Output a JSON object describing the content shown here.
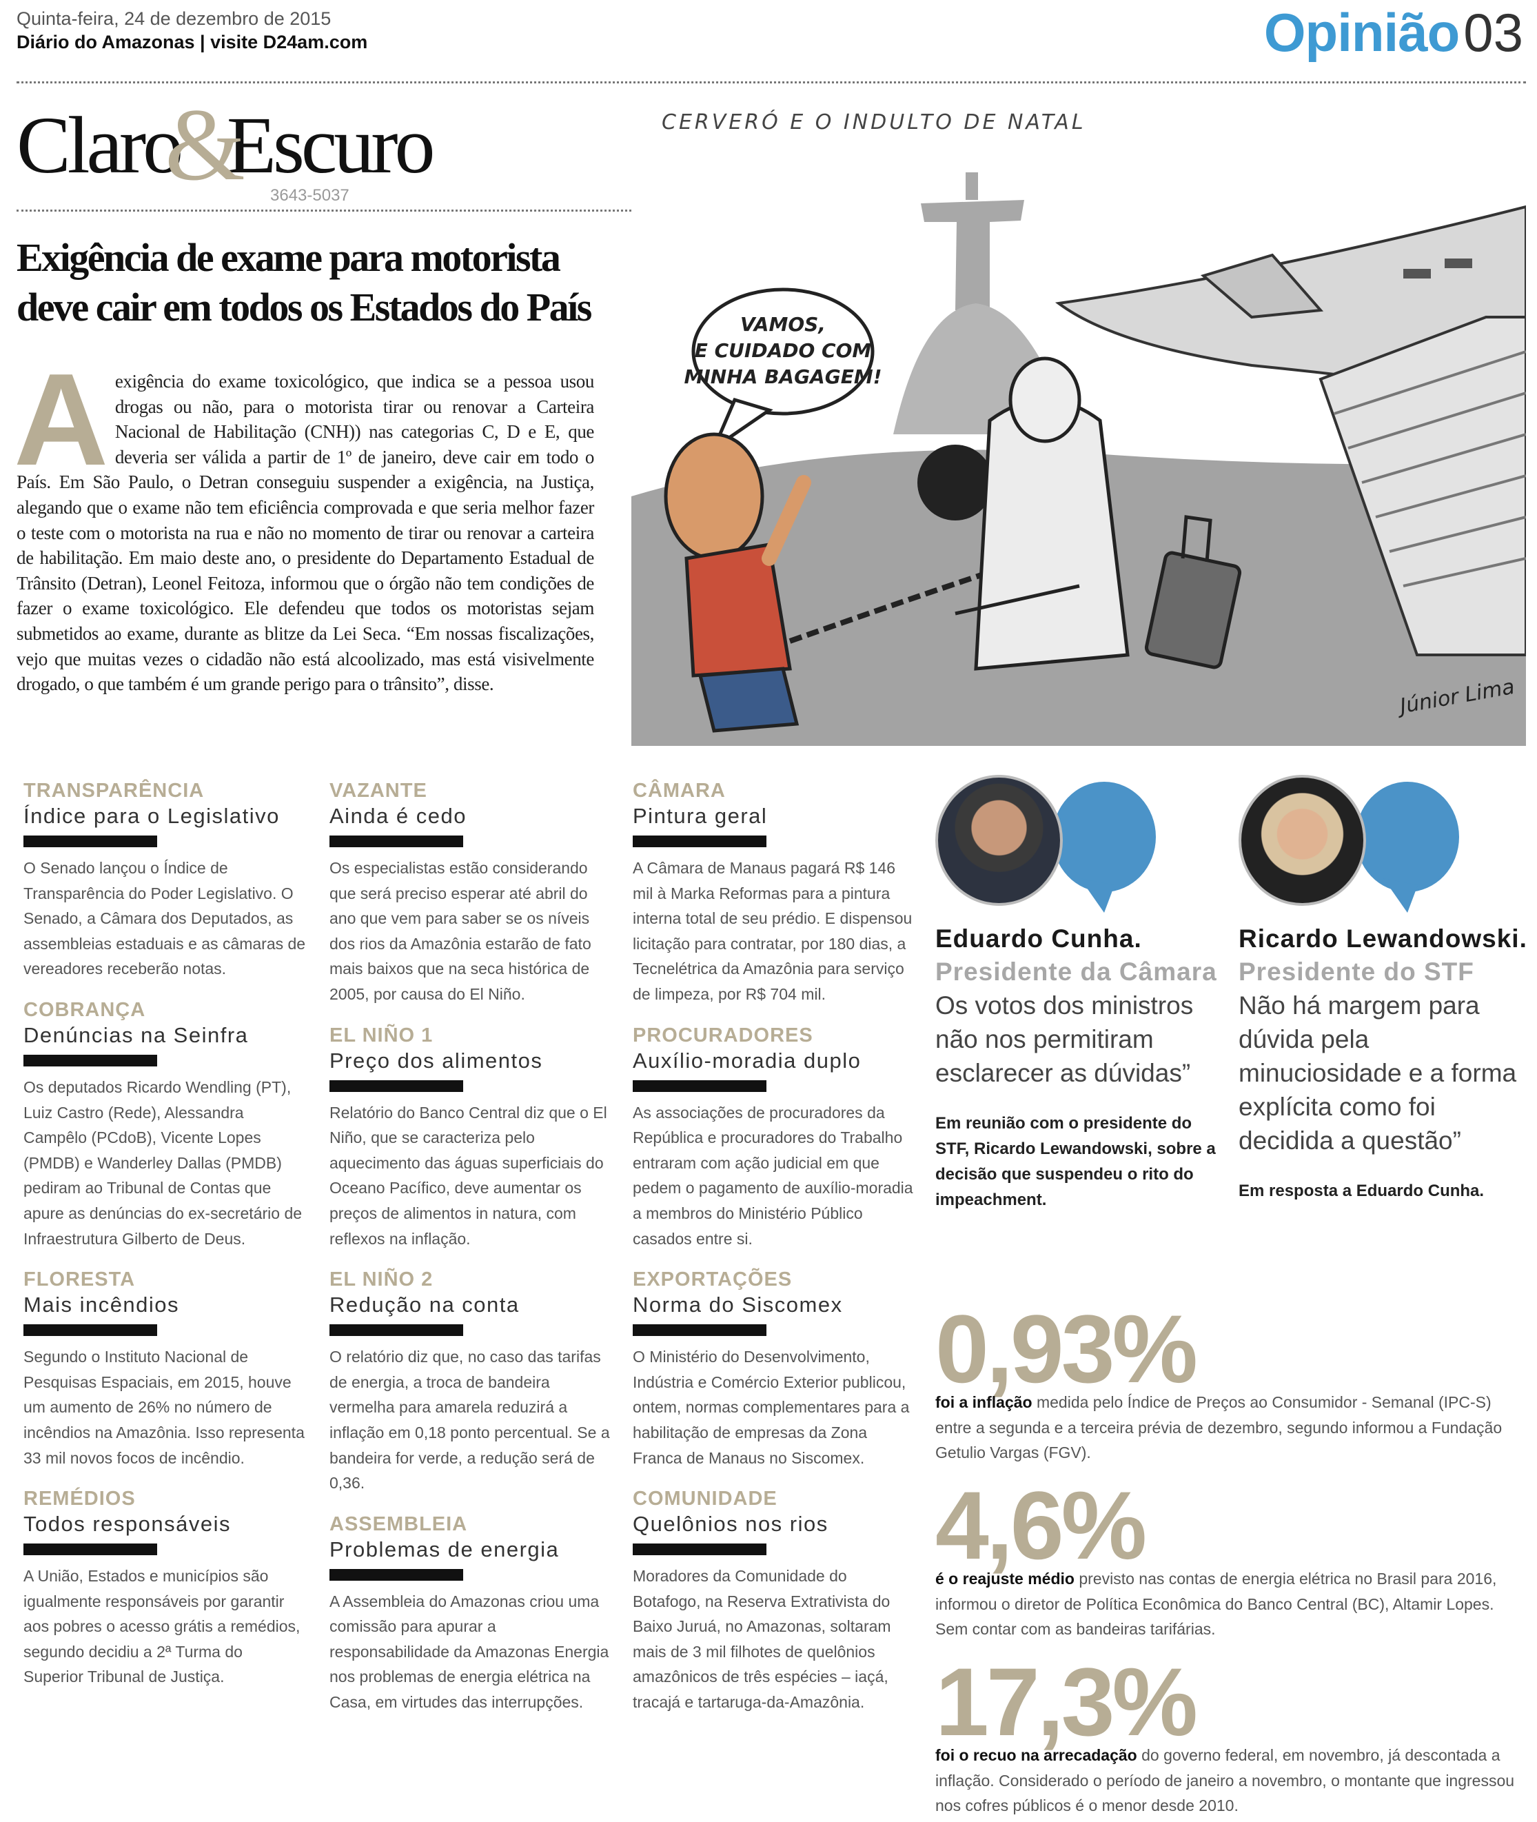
{
  "header": {
    "date": "Quinta-feira, 24 de dezembro de 2015",
    "paper": "Diário do Amazonas | visite D24am.com",
    "section": "Opinião",
    "page_number": "03",
    "section_color": "#3e9ad3"
  },
  "column_logo": {
    "word1": "Claro",
    "amp": "&",
    "word2": "Escuro",
    "phone": "3643-5037",
    "accent_color": "#b7ad95"
  },
  "cartoon": {
    "title": "CERVERÓ E O INDULTO DE NATAL",
    "speech_lines": [
      "VAMOS,",
      "E CUIDADO COM",
      "MINHA BAGAGEM!"
    ],
    "signature": "Júnior Lima"
  },
  "article": {
    "headline_bold": "Exigência de exame",
    "headline_rest": " para motorista deve cair em todos os Estados do País",
    "drop_cap": "A",
    "body": " exigência do exame toxicológico, que indica se a pessoa usou drogas ou não, para o motorista tirar ou renovar a Carteira Nacional de Habilitação (CNH)) nas categorias C, D e E, que deveria ser válida a partir de 1º de janeiro, deve cair em todo o País. Em São Paulo, o Detran conseguiu suspender a exigência, na Justiça, alegando que o exame não tem eficiência comprovada e que seria melhor fazer o teste com o motorista na rua e não no momento de tirar ou renovar a carteira de habilitação. Em maio deste ano, o presidente do Departamento Estadual de Trânsito (Detran), Leonel Feitoza, informou que o órgão não tem condições de fazer o exame toxicológico. Ele defendeu que todos os motoristas sejam submetidos ao exame, durante as blitze da Lei Seca. “Em nossas fiscalizações, vejo que muitas vezes o cidadão não está alcoolizado, mas está visivelmente drogado, o que também é um grande perigo para o trânsito”, disse."
  },
  "columns": [
    [
      {
        "kicker": "TRANSPARÊNCIA",
        "title": "Índice para o Legislativo",
        "body": "O Senado lançou o Índice de Transparência do Poder Legislativo. O Senado, a Câmara dos Deputados, as assembleias estaduais e as câmaras de vereadores receberão notas."
      },
      {
        "kicker": "COBRANÇA",
        "title": "Denúncias na Seinfra",
        "body": "Os deputados Ricardo Wendling (PT), Luiz Castro (Rede), Alessandra Campêlo (PCdoB), Vicente Lopes (PMDB) e Wanderley Dallas (PMDB) pediram ao Tribunal de Contas que apure as denúncias do ex-secretário de Infraestrutura Gilberto de Deus."
      },
      {
        "kicker": "FLORESTA",
        "title": "Mais incêndios",
        "body": "Segundo o Instituto Nacional de Pesquisas Espaciais, em 2015, houve um aumento de 26% no número de incêndios na Amazônia. Isso representa 33 mil novos focos de incêndio."
      },
      {
        "kicker": "REMÉDIOS",
        "title": "Todos responsáveis",
        "body": "A União, Estados e municípios são igualmente responsáveis por garantir aos pobres o acesso grátis a remédios, segundo decidiu a 2ª Turma do Superior Tribunal de Justiça."
      }
    ],
    [
      {
        "kicker": "VAZANTE",
        "title": "Ainda é cedo",
        "body": "Os especialistas estão considerando que será preciso esperar até abril do ano que vem para saber se os níveis dos rios da Amazônia estarão de fato mais baixos que na seca histórica de 2005, por causa do El Niño."
      },
      {
        "kicker": "EL NIÑO 1",
        "title": "Preço dos alimentos",
        "body": "Relatório do Banco Central diz que o El Niño, que se caracteriza pelo aquecimento das águas superficiais do Oceano Pacífico, deve aumentar os preços de alimentos in natura, com reflexos na inflação."
      },
      {
        "kicker": "EL NIÑO 2",
        "title": "Redução na conta",
        "body": "O relatório diz que, no caso das tarifas de energia, a troca de bandeira vermelha para amarela reduzirá a inflação em 0,18 ponto percentual. Se a bandeira for verde, a redução será de 0,36."
      },
      {
        "kicker": "ASSEMBLEIA",
        "title": "Problemas de energia",
        "body": "A Assembleia do Amazonas criou uma comissão para apurar a responsabilidade da Amazonas Energia nos problemas de energia elétrica na Casa, em virtudes das interrupções."
      }
    ],
    [
      {
        "kicker": "CÂMARA",
        "title": "Pintura geral",
        "body": "A Câmara de Manaus pagará R$ 146 mil à Marka Reformas para a pintura interna total de seu prédio. E dispensou licitação para contratar, por 180 dias, a Tecnelétrica da Amazônia para serviço de limpeza, por R$ 704 mil."
      },
      {
        "kicker": "PROCURADORES",
        "title": "Auxílio-moradia duplo",
        "body": "As associações de procuradores da República e procuradores do Trabalho entraram com ação judicial em que pedem o pagamento de auxílio-moradia a membros do Ministério Público casados entre si."
      },
      {
        "kicker": "EXPORTAÇÕES",
        "title": "Norma do Siscomex",
        "body": "O Ministério do Desenvolvimento, Indústria e Comércio Exterior publicou, ontem, normas complementares para a habilitação de empresas da Zona Franca de Manaus no Siscomex."
      },
      {
        "kicker": "COMUNIDADE",
        "title": "Quelônios nos rios",
        "body": "Moradores da Comunidade do Botafogo, na Reserva Extrativista do Baixo Juruá, no Amazonas, soltaram mais de 3 mil filhotes de quelônios amazônicos de três espécies – iaçá, tracajá e tartaruga-da-Amazônia."
      }
    ]
  ],
  "quotes": [
    {
      "name": "Eduardo Cunha.",
      "role": "Presidente da Câmara",
      "text": "Os votos dos ministros não nos permitiram esclarecer as dúvidas”",
      "note": "Em reunião com o presidente do STF, Ricardo Lewandowski, sobre a decisão que suspendeu o rito do impeachment."
    },
    {
      "name": "Ricardo Lewandowski.",
      "role": "Presidente do STF",
      "text": "Não há margem para dúvida pela minuciosidade e a forma explícita como foi decidida a questão”",
      "note": "Em resposta a Eduardo Cunha."
    }
  ],
  "quote_bubble_color": "#4b93c8",
  "stats": [
    {
      "value": "0,93%",
      "lead": "foi a inflação",
      "text": " medida pelo Índice de Preços ao Consumidor - Semanal (IPC-S) entre a segunda e a terceira prévia de dezembro, segundo informou a Fundação Getulio Vargas (FGV)."
    },
    {
      "value": "4,6%",
      "lead": "é o reajuste médio",
      "text": " previsto nas contas de energia elétrica no Brasil para 2016, informou o diretor de Política Econômica do Banco Central (BC), Altamir Lopes. Sem contar com as bandeiras tarifárias."
    },
    {
      "value": "17,3%",
      "lead": "foi o recuo na arrecadação",
      "text": " do governo federal, em novembro, já descontada a inflação. Considerado o período de janeiro a novembro, o montante que ingressou nos cofres públicos é o menor desde 2010."
    }
  ]
}
